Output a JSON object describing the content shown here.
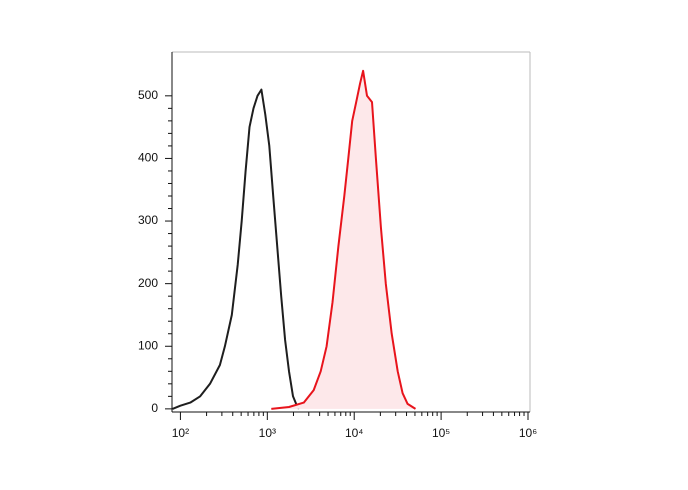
{
  "chart_data": {
    "type": "line",
    "xscale": "log",
    "xlim": [
      80,
      1000000
    ],
    "xticks": [
      {
        "value": 100,
        "label": "10²"
      },
      {
        "value": 1000,
        "label": "10³"
      },
      {
        "value": 10000,
        "label": "10⁴"
      },
      {
        "value": 100000,
        "label": "10⁵"
      },
      {
        "value": 1000000,
        "label": "10⁶"
      }
    ],
    "ylim": [
      -5,
      570
    ],
    "yticks": [
      0,
      100,
      200,
      300,
      400,
      500
    ],
    "series": [
      {
        "color": "#1e1e1e",
        "x": [
          81,
          100,
          130,
          169,
          219,
          285,
          325,
          390,
          456,
          507,
          562,
          624,
          693,
          770,
          855,
          949,
          1054,
          1170,
          1300,
          1443,
          1602,
          1778,
          1974,
          2192,
          2310
        ],
        "values": [
          0,
          5,
          10,
          20,
          40,
          70,
          100,
          150,
          230,
          300,
          380,
          450,
          480,
          500,
          510,
          470,
          420,
          340,
          260,
          180,
          110,
          60,
          20,
          5,
          0
        ]
      },
      {
        "color": "#e8141c",
        "fill": "#fde8ea",
        "x": [
          1110,
          1778,
          2630,
          3420,
          4110,
          4810,
          5620,
          6580,
          7700,
          8550,
          9490,
          10540,
          11700,
          12650,
          14050,
          16030,
          17780,
          20280,
          23120,
          27040,
          31620,
          36060,
          41110,
          50700
        ],
        "values": [
          0,
          3,
          10,
          30,
          60,
          100,
          170,
          260,
          340,
          400,
          460,
          490,
          520,
          540,
          500,
          490,
          400,
          290,
          200,
          120,
          60,
          25,
          8,
          0
        ]
      }
    ]
  }
}
